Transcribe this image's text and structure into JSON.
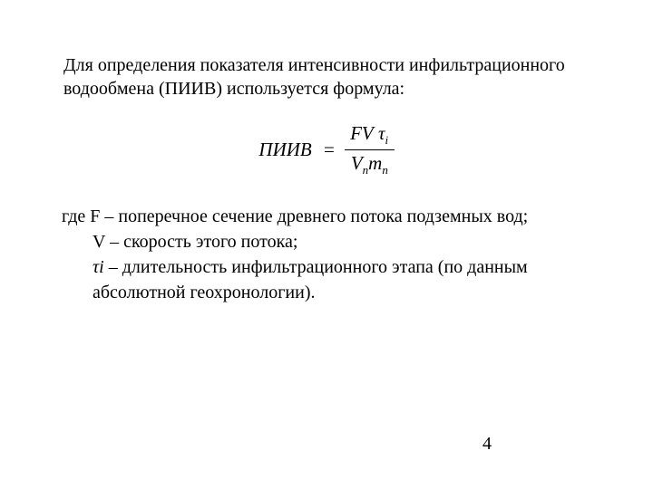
{
  "intro": "Для определения показателя интенсивности инфильтрационного водообмена (ПИИВ) используется формула:",
  "formula": {
    "lhs": "ПИИВ",
    "eq": "=",
    "num_FV": "FV",
    "num_tau": "τ",
    "num_tau_sub": "i",
    "den_V": "V",
    "den_V_sub": "п",
    "den_m": "m",
    "den_m_sub": "п"
  },
  "defs": {
    "line1_pre": "где F – поперечное сечение древнего потока подземных вод;",
    "line2": "V – скорость этого потока;",
    "line3_sym": " τi",
    "line3_rest": " – длительность инфильтрационного этапа (по данным абсолютной геохронологии)."
  },
  "page_number": "4"
}
